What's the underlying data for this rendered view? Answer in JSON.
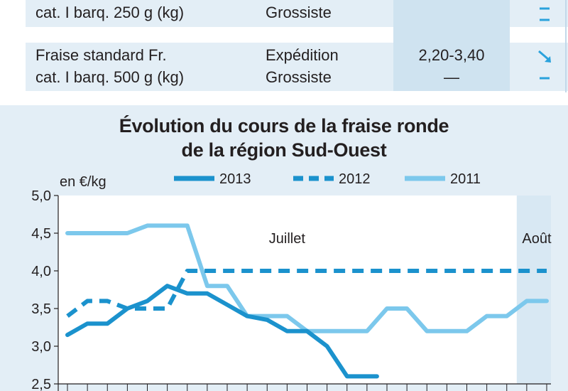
{
  "table": {
    "rows": [
      {
        "product": "cat. I barq. 250 g (kg)",
        "market": "Grossiste",
        "price": "",
        "trends": [
          "",
          "–"
        ]
      },
      {
        "product": "Fraise standard Fr.\ncat. I barq. 500 g (kg)",
        "market": "Expédition\nGrossiste",
        "price": "2,20-3,40\n—",
        "trends": [
          "↘",
          "–"
        ]
      }
    ]
  },
  "chart_data": {
    "type": "line",
    "title_line1": "Évolution du cours de la fraise ronde",
    "title_line2": "de la région Sud-Ouest",
    "ylabel": "en €/kg",
    "ylim": [
      2.5,
      5.0
    ],
    "yticks": [
      "5,0",
      "4,5",
      "4,0",
      "3,5",
      "3,0",
      "2,5"
    ],
    "ytick_values": [
      5.0,
      4.5,
      4.0,
      3.5,
      3.0,
      2.5
    ],
    "x_index_count": 25,
    "annotations": [
      {
        "text": "Juillet",
        "x": 11
      },
      {
        "text": "Août",
        "x": 23.5
      }
    ],
    "august_shade_from": 22.5,
    "series": [
      {
        "name": "2013",
        "style": "solid",
        "color": "#1b92cd",
        "x": [
          0,
          1,
          2,
          3,
          4,
          5,
          6,
          7,
          8,
          9,
          10,
          11,
          12,
          13,
          14,
          15,
          15.5
        ],
        "y": [
          3.15,
          3.3,
          3.3,
          3.5,
          3.6,
          3.8,
          3.7,
          3.7,
          3.55,
          3.4,
          3.35,
          3.2,
          3.2,
          3.0,
          2.6,
          2.6,
          2.6
        ]
      },
      {
        "name": "2012",
        "style": "dashed",
        "color": "#1b92cd",
        "x": [
          0,
          1,
          2,
          3,
          4,
          5,
          6,
          7,
          8,
          9,
          10,
          11,
          12,
          13,
          14,
          15,
          16,
          17,
          18,
          19,
          20,
          21,
          22,
          23,
          24
        ],
        "y": [
          3.4,
          3.6,
          3.6,
          3.5,
          3.5,
          3.5,
          4.0,
          4.0,
          4.0,
          4.0,
          4.0,
          4.0,
          4.0,
          4.0,
          4.0,
          4.0,
          4.0,
          4.0,
          4.0,
          4.0,
          4.0,
          4.0,
          4.0,
          4.0,
          4.0
        ]
      },
      {
        "name": "2011",
        "style": "solid",
        "color": "#7cc8ec",
        "x": [
          0,
          1,
          2,
          3,
          4,
          5,
          6,
          7,
          8,
          9,
          10,
          11,
          12,
          13,
          14,
          15,
          16,
          17,
          18,
          19,
          20,
          21,
          22,
          23,
          24
        ],
        "y": [
          4.5,
          4.5,
          4.5,
          4.5,
          4.6,
          4.6,
          4.6,
          3.8,
          3.8,
          3.4,
          3.4,
          3.4,
          3.2,
          3.2,
          3.2,
          3.2,
          3.5,
          3.5,
          3.2,
          3.2,
          3.2,
          3.4,
          3.4,
          3.6,
          3.6
        ]
      }
    ],
    "legend": [
      {
        "name": "2013",
        "style": "solid",
        "color": "#1b92cd"
      },
      {
        "name": "2012",
        "style": "dashed",
        "color": "#1b92cd"
      },
      {
        "name": "2011",
        "style": "solid",
        "color": "#7cc8ec"
      }
    ]
  }
}
